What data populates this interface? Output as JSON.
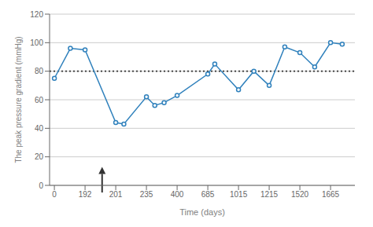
{
  "chart_data": {
    "type": "line",
    "x": [
      0,
      100,
      192,
      201,
      210,
      235,
      280,
      330,
      400,
      685,
      760,
      1015,
      1115,
      1215,
      1370,
      1520,
      1590,
      1665,
      1720
    ],
    "values": [
      75,
      96,
      95,
      44,
      43,
      62,
      56,
      58,
      63,
      78,
      85,
      67,
      80,
      70,
      97,
      93,
      83,
      100,
      99
    ],
    "xlabel": "Time (days)",
    "ylabel": "The peak pressure gradient  (mmHg)",
    "xlim": [
      -30,
      1780
    ],
    "ylim": [
      0,
      120
    ],
    "xticks": [
      0,
      192,
      201,
      235,
      400,
      685,
      1015,
      1215,
      1520,
      1665
    ],
    "yticks": [
      0,
      20,
      40,
      60,
      80,
      100,
      120
    ],
    "grid": true,
    "marker": "o",
    "annotations": [
      {
        "type": "hline",
        "y": 80,
        "line_style": "dotted"
      },
      {
        "type": "arrow",
        "x": 197,
        "y_start": -5,
        "y_end": 13
      }
    ]
  }
}
